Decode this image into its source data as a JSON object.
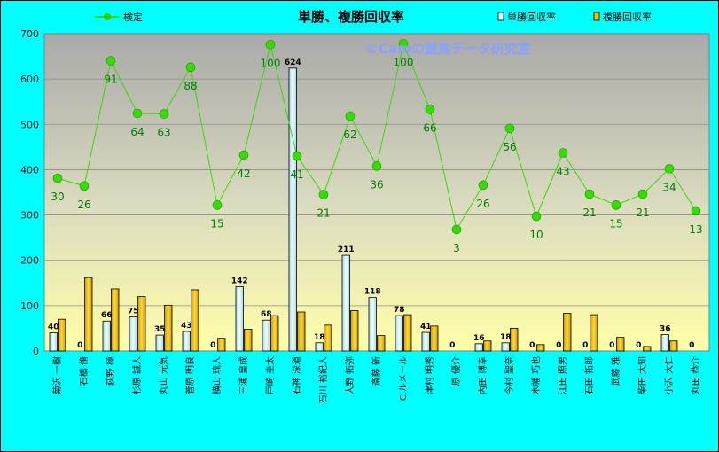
{
  "chart_data": {
    "type": "bar+line",
    "title": "単勝、複勝回収率",
    "watermark": "©Camの競馬データ研究室",
    "ylim": [
      0,
      700
    ],
    "yticks": [
      "0",
      "100",
      "200",
      "300",
      "400",
      "500",
      "600",
      "700"
    ],
    "categories": [
      "菊沢 一樹",
      "石橋 脩",
      "荻野 極",
      "杉原 誠人",
      "丸山 元気",
      "菅原 明良",
      "横山 琉人",
      "三浦 皇成",
      "戸崎 圭太",
      "石神 深道",
      "石川 裕紀人",
      "大野 拓弥",
      "斎藤 新",
      "C.ルメール",
      "津村 明秀",
      "原 優介",
      "内田 博幸",
      "今村 聖奈",
      "木幡 巧也",
      "江田 照男",
      "石田 拓郎",
      "武藤 雅",
      "柴田 大知",
      "小沢 大仁",
      "丸田 恭介"
    ],
    "series": [
      {
        "name": "単勝回収率",
        "type": "bar",
        "color": "#d8f4ff",
        "values": [
          40,
          0,
          66,
          75,
          35,
          43,
          0,
          142,
          68,
          624,
          18,
          211,
          118,
          78,
          41,
          0,
          16,
          18,
          0,
          0,
          0,
          0,
          0,
          36,
          0
        ]
      },
      {
        "name": "複勝回収率",
        "type": "bar",
        "color": "#f2c000",
        "values": [
          70,
          162,
          137,
          120,
          101,
          135,
          28,
          48,
          78,
          86,
          57,
          89,
          34,
          80,
          55,
          0,
          22,
          50,
          14,
          83,
          80,
          30,
          10,
          22,
          0
        ]
      },
      {
        "name": "検定",
        "type": "line",
        "color": "#33cc00",
        "values": [
          381,
          364,
          640,
          524,
          523,
          626,
          322,
          432,
          676,
          430,
          345,
          518,
          408,
          678,
          533,
          268,
          366,
          491,
          297,
          437,
          346,
          322,
          346,
          402,
          309
        ]
      }
    ],
    "bar1_labels": [
      "40",
      "0",
      "66",
      "75",
      "35",
      "43",
      "0",
      "142",
      "68",
      "624",
      "18",
      "211",
      "118",
      "78",
      "41",
      "0",
      "16",
      "18",
      "0",
      "0",
      "0",
      "0",
      "0",
      "36",
      "0"
    ],
    "line_labels": [
      "30",
      "26",
      "91",
      "64",
      "63",
      "88",
      "15",
      "42",
      "100",
      "41",
      "21",
      "62",
      "36",
      "100",
      "66",
      "3",
      "26",
      "56",
      "10",
      "43",
      "21",
      "15",
      "21",
      "34",
      "13"
    ]
  }
}
